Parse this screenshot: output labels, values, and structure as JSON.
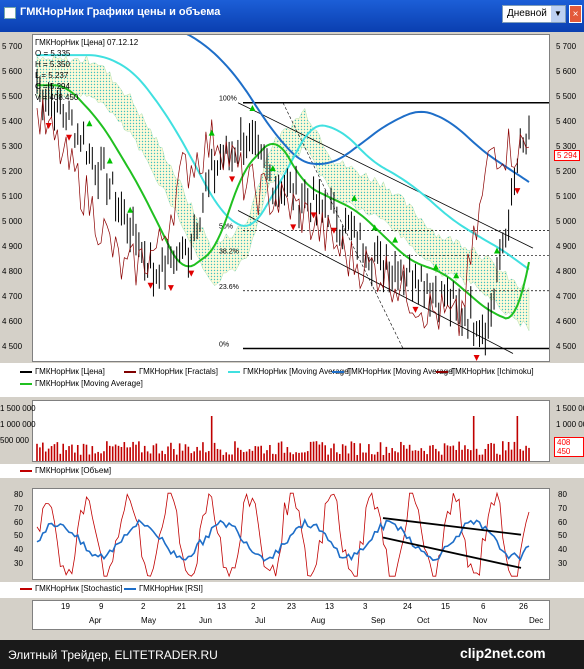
{
  "window": {
    "title": "ГМКНорНик Графики цены и объема",
    "period": "Дневной",
    "close_glyph": "×"
  },
  "ohlc": {
    "header": "ГМКНорНик [Цена] 07.12.12",
    "open": "O = 5.335",
    "high": "H = 5.350",
    "low": "L = 5.237",
    "close": "C = 5.294",
    "volume": "V = 408.450"
  },
  "price_axis_left": [
    "5 700",
    "5 600",
    "5 500",
    "5 400",
    "5 300",
    "5 200",
    "5 100",
    "5 000",
    "4 900",
    "4 800",
    "4 700",
    "4 600",
    "4 500"
  ],
  "price_axis_right": [
    "5 700",
    "5 600",
    "5 500",
    "5 400",
    "5 300",
    "5 200",
    "5 100",
    "5 000",
    "4 900",
    "4 800",
    "4 700",
    "4 600",
    "4 500"
  ],
  "price_last": "5 294",
  "fib_levels": [
    {
      "label": "100%",
      "price": 5480
    },
    {
      "label": "50%",
      "price": 4970
    },
    {
      "label": "38.2%",
      "price": 4870
    },
    {
      "label": "23.6%",
      "price": 4730
    },
    {
      "label": "0%",
      "price": 4500
    }
  ],
  "price_legend": [
    {
      "label": "ГМКНорНик [Цена]",
      "color": "#000000"
    },
    {
      "label": "ГМКНорНик [Fractals]",
      "color": "#800000"
    },
    {
      "label": "ГМКНорНик [Moving Average]",
      "color": "#40e0e0"
    },
    {
      "label": "ГМКНорНик [Moving Average]",
      "color": "#1e6ec8"
    },
    {
      "label": "ГМКНорНик [Ichimoku]",
      "color": "#8b0000"
    },
    {
      "label": "ГМКНорНик [Moving Average]",
      "color": "#20c020"
    }
  ],
  "volume_axis_left": [
    "1 500 000",
    "1 000 000",
    "500 000"
  ],
  "volume_axis_right": [
    "1 500 000",
    "1 000 000",
    "500 000"
  ],
  "volume_last": "408 450",
  "volume_legend": [
    {
      "label": "ГМКНорНик [Объем]",
      "color": "#c00000"
    }
  ],
  "osc_axis_left": [
    "80",
    "70",
    "60",
    "50",
    "40",
    "30"
  ],
  "osc_axis_right": [
    "80",
    "70",
    "60",
    "50",
    "40",
    "30"
  ],
  "osc_legend": [
    {
      "label": "ГМКНорНик [Stochastic]",
      "color": "#c00000"
    },
    {
      "label": "ГМКНорНик [RSI]",
      "color": "#1e6ec8"
    }
  ],
  "time_axis": {
    "days": [
      "19",
      "9",
      "2",
      "21",
      "13",
      "2",
      "23",
      "13",
      "3",
      "24",
      "15",
      "6",
      "26"
    ],
    "months": [
      "Apr",
      "May",
      "Jun",
      "Jul",
      "Aug",
      "Sep",
      "Oct",
      "Nov",
      "Dec"
    ]
  },
  "footer": {
    "left": "Элитный Трейдер, ELITETRADER.RU",
    "right": "clip2net.com"
  },
  "colors": {
    "price": "#000000",
    "ma_fast": "#20c020",
    "ma_mid": "#40e0e0",
    "ma_slow": "#1e6ec8",
    "fractal_up": "#00c000",
    "fractal_down": "#e00000",
    "volume": "#c00000",
    "stoch": "#c00000",
    "rsi": "#1e6ec8"
  }
}
